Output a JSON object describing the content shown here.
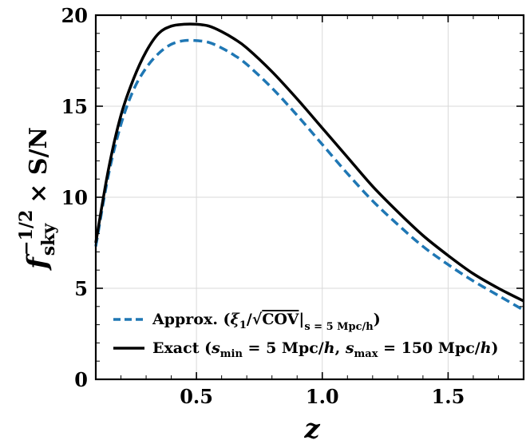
{
  "chart_data": {
    "type": "line",
    "title": "",
    "xlabel": "z",
    "ylabel": {
      "f": "f",
      "sub": "sky",
      "sup": "−1/2",
      "rest": "× S/N"
    },
    "xlim": [
      0.1,
      1.8
    ],
    "ylim": [
      0,
      20
    ],
    "xticks": [
      0.5,
      1.0,
      1.5
    ],
    "xtick_labels": [
      "0.5",
      "1.0",
      "1.5"
    ],
    "yticks": [
      0,
      5,
      10,
      15,
      20
    ],
    "ytick_labels": [
      "0",
      "5",
      "10",
      "15",
      "20"
    ],
    "grid": true,
    "legend_position": "lower-left",
    "series": [
      {
        "name": "Approx. (ξ1/√COV|s=5 Mpc/h)",
        "style": "dashed",
        "color": "#1f77b4",
        "x": [
          0.1,
          0.15,
          0.2,
          0.25,
          0.3,
          0.35,
          0.4,
          0.45,
          0.5,
          0.55,
          0.6,
          0.65,
          0.7,
          0.8,
          0.9,
          1.0,
          1.1,
          1.2,
          1.3,
          1.4,
          1.5,
          1.6,
          1.7,
          1.8
        ],
        "y": [
          7.3,
          11.2,
          14.0,
          15.9,
          17.1,
          17.9,
          18.4,
          18.6,
          18.6,
          18.5,
          18.2,
          17.8,
          17.3,
          16.0,
          14.5,
          12.9,
          11.3,
          9.8,
          8.5,
          7.3,
          6.3,
          5.4,
          4.6,
          3.8
        ]
      },
      {
        "name": "Exact (smin = 5 Mpc/h, smax = 150 Mpc/h)",
        "style": "solid",
        "color": "#000000",
        "x": [
          0.1,
          0.15,
          0.2,
          0.25,
          0.3,
          0.35,
          0.4,
          0.45,
          0.5,
          0.55,
          0.6,
          0.65,
          0.7,
          0.8,
          0.9,
          1.0,
          1.1,
          1.2,
          1.3,
          1.4,
          1.5,
          1.6,
          1.7,
          1.8
        ],
        "y": [
          7.5,
          11.5,
          14.5,
          16.5,
          18.0,
          19.0,
          19.4,
          19.5,
          19.5,
          19.4,
          19.1,
          18.7,
          18.2,
          16.9,
          15.4,
          13.8,
          12.2,
          10.6,
          9.2,
          7.9,
          6.8,
          5.8,
          5.0,
          4.3
        ]
      }
    ],
    "legend": [
      {
        "style": "dashed",
        "color": "#1f77b4",
        "parts": {
          "pre": "Approx. (",
          "xi": "ξ",
          "xi_sub": "1",
          "slash": "/",
          "sqrt": "√",
          "cov": "COV",
          "bar": "|",
          "eval_sub": "s = 5 Mpc/h",
          "post": ")"
        }
      },
      {
        "style": "solid",
        "color": "#000000",
        "parts": {
          "pre": "Exact (",
          "s1": "s",
          "s1_sub": "min",
          "eq1": " = 5 Mpc/",
          "h1": "h",
          "comma": ", ",
          "s2": "s",
          "s2_sub": "max",
          "eq2": " = 150 Mpc/",
          "h2": "h",
          "post": ")"
        }
      }
    ]
  }
}
